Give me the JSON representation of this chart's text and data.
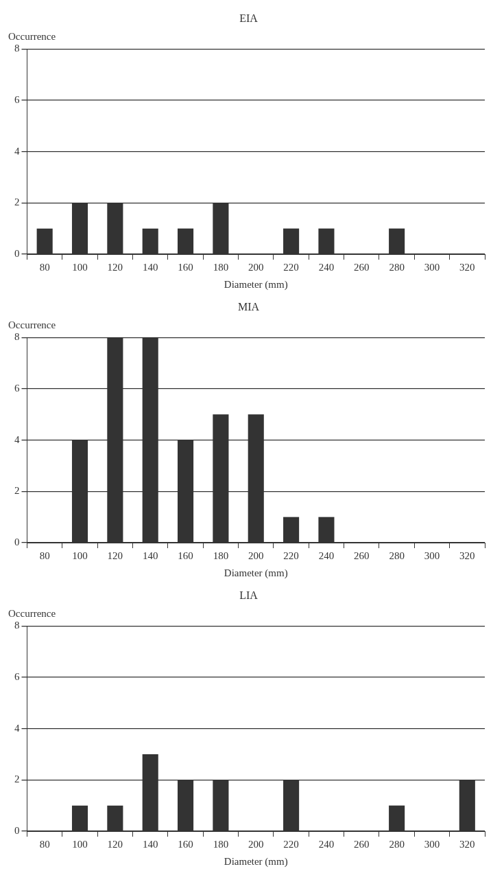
{
  "chart_data": [
    {
      "type": "bar",
      "title": "EIA",
      "xlabel": "Diameter (mm)",
      "ylabel": "Occurrence",
      "categories": [
        "80",
        "100",
        "120",
        "140",
        "160",
        "180",
        "200",
        "220",
        "240",
        "260",
        "280",
        "300",
        "320"
      ],
      "values": [
        1,
        2,
        2,
        1,
        1,
        2,
        0,
        1,
        1,
        0,
        1,
        0,
        0
      ],
      "color": "#333333",
      "ylim": [
        0,
        8
      ],
      "yticks": [
        0,
        2,
        4,
        6,
        8
      ],
      "grid": "y",
      "legend": false
    },
    {
      "type": "bar",
      "title": "MIA",
      "xlabel": "Diameter (mm)",
      "ylabel": "Occurrence",
      "categories": [
        "80",
        "100",
        "120",
        "140",
        "160",
        "180",
        "200",
        "220",
        "240",
        "260",
        "280",
        "300",
        "320"
      ],
      "values": [
        0,
        4,
        8,
        8,
        4,
        5,
        5,
        1,
        1,
        0,
        0,
        0,
        0
      ],
      "color": "#333333",
      "ylim": [
        0,
        8
      ],
      "yticks": [
        0,
        2,
        4,
        6,
        8
      ],
      "grid": "y",
      "legend": false
    },
    {
      "type": "bar",
      "title": "LIA",
      "xlabel": "Diameter (mm)",
      "ylabel": "Occurrence",
      "categories": [
        "80",
        "100",
        "120",
        "140",
        "160",
        "180",
        "200",
        "220",
        "240",
        "260",
        "280",
        "300",
        "320"
      ],
      "values": [
        0,
        1,
        1,
        3,
        2,
        2,
        0,
        2,
        0,
        0,
        1,
        0,
        2
      ],
      "color": "#333333",
      "ylim": [
        0,
        8
      ],
      "yticks": [
        0,
        2,
        4,
        6,
        8
      ],
      "grid": "y",
      "legend": false
    }
  ]
}
